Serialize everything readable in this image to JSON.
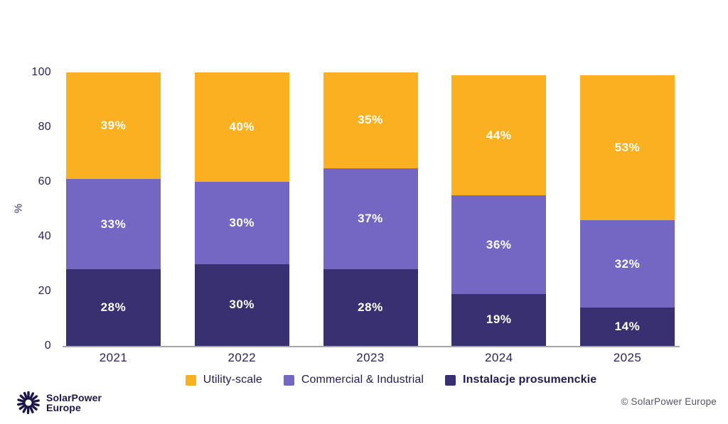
{
  "chart_data": {
    "type": "bar",
    "stacked": true,
    "categories": [
      "2021",
      "2022",
      "2023",
      "2024",
      "2025"
    ],
    "series": [
      {
        "name": "Utility-scale",
        "color": "#FBB021",
        "values": [
          39,
          40,
          35,
          44,
          53
        ],
        "emphasis": false
      },
      {
        "name": "Commercial & Industrial",
        "color": "#7466C3",
        "values": [
          33,
          30,
          37,
          36,
          32
        ],
        "emphasis": false
      },
      {
        "name": "Instalacje prosumenckie",
        "color": "#393071",
        "values": [
          28,
          30,
          28,
          19,
          14
        ],
        "emphasis": true
      }
    ],
    "stack_order_bottom_to_top": [
      "Instalacje prosumenckie",
      "Commercial & Industrial",
      "Utility-scale"
    ],
    "title": "",
    "xlabel": "",
    "ylabel": "%",
    "ylim": [
      0,
      100
    ],
    "yticks": [
      100,
      80,
      60,
      40,
      20,
      0
    ],
    "value_label_suffix": "%",
    "legend_position": "bottom",
    "grid": false
  },
  "footer": {
    "logo_line1": "SolarPower",
    "logo_line2": "Europe",
    "copyright": "© SolarPower Europe"
  },
  "colors": {
    "background": "#FFFFFF",
    "axis_line": "#A6A6A6",
    "axis_text": "#2A2359",
    "value_label_text": "#FFFFFF",
    "logo_navy": "#1C1748",
    "copyright_gray": "#555166"
  }
}
